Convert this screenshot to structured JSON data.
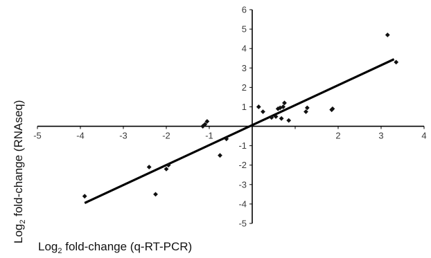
{
  "chart_data": {
    "type": "scatter",
    "title": "",
    "xlabel": "fold-change (q-RT-PCR)",
    "xlabel_prefix": "Log",
    "xlabel_subscript": "2",
    "ylabel": "fold-change (RNAseq)",
    "ylabel_prefix": "Log",
    "ylabel_subscript": "2",
    "xlim": [
      -5,
      4
    ],
    "ylim": [
      -5,
      6
    ],
    "xticks": [
      -5,
      -4,
      -3,
      -2,
      -1,
      2,
      3,
      4
    ],
    "yticks": [
      6,
      5,
      4,
      3,
      2,
      1,
      -1,
      -2,
      -3,
      -4,
      -5
    ],
    "grid": false,
    "marker": "diamond",
    "colors": {
      "points": "#111111",
      "line": "#000000",
      "axes": "#000000"
    },
    "points": [
      {
        "x": -3.9,
        "y": -3.6
      },
      {
        "x": -2.4,
        "y": -2.1
      },
      {
        "x": -2.25,
        "y": -3.5
      },
      {
        "x": -2.0,
        "y": -2.2
      },
      {
        "x": -1.95,
        "y": -2.0
      },
      {
        "x": -1.15,
        "y": 0.0
      },
      {
        "x": -1.1,
        "y": 0.1
      },
      {
        "x": -1.05,
        "y": 0.25
      },
      {
        "x": -0.75,
        "y": -1.5
      },
      {
        "x": -0.6,
        "y": -0.65
      },
      {
        "x": 0.15,
        "y": 1.0
      },
      {
        "x": 0.25,
        "y": 0.75
      },
      {
        "x": 0.45,
        "y": 0.45
      },
      {
        "x": 0.55,
        "y": 0.5
      },
      {
        "x": 0.6,
        "y": 0.9
      },
      {
        "x": 0.65,
        "y": 0.95
      },
      {
        "x": 0.68,
        "y": 0.4
      },
      {
        "x": 0.72,
        "y": 1.0
      },
      {
        "x": 0.75,
        "y": 1.2
      },
      {
        "x": 0.85,
        "y": 0.3
      },
      {
        "x": 1.25,
        "y": 0.75
      },
      {
        "x": 1.28,
        "y": 0.95
      },
      {
        "x": 1.85,
        "y": 0.85
      },
      {
        "x": 1.87,
        "y": 0.9
      },
      {
        "x": 3.15,
        "y": 4.7
      },
      {
        "x": 3.35,
        "y": 3.3
      }
    ],
    "trendline": {
      "x": [
        -3.9,
        3.3
      ],
      "y": [
        -3.95,
        3.45
      ]
    }
  }
}
